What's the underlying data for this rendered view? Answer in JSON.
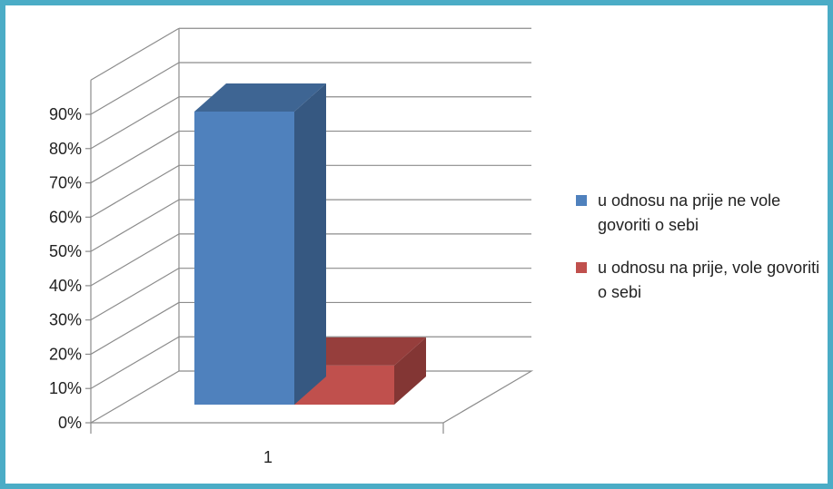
{
  "chart_data": {
    "type": "bar",
    "categories": [
      "1"
    ],
    "series": [
      {
        "name": "u odnosu na prije ne vole govoriti o sebi",
        "values": [
          0.9
        ],
        "color": "#4F81BD"
      },
      {
        "name": "u odnosu na prije, vole govoriti o sebi",
        "values": [
          0.12
        ],
        "color": "#C0504D"
      }
    ],
    "y_ticks": [
      "0%",
      "10%",
      "20%",
      "30%",
      "40%",
      "50%",
      "60%",
      "70%",
      "80%",
      "90%"
    ],
    "ylim": [
      0,
      1
    ],
    "grid": true,
    "legend_position": "right",
    "three_d": true
  },
  "colors": {
    "border": "#4BACC6",
    "grid": "#8c8c8c",
    "axis_text": "#222222"
  }
}
